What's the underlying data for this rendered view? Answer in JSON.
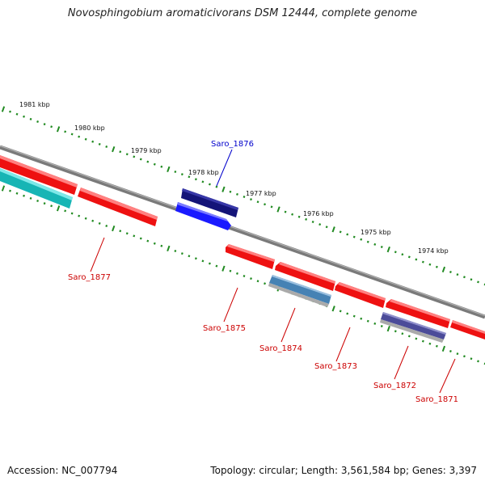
{
  "title": "Novosphingobium aromaticivorans DSM 12444, complete genome",
  "footer": {
    "accession": "Accession: NC_007794",
    "topology": "Topology: circular; Length: 3,561,584 bp; Genes: 3,397"
  },
  "colors": {
    "forward_gene": "#1a1aff",
    "forward_gene_dark": "#12127a",
    "reverse_gene": "#ff1a1a",
    "cyan_feature": "#22cccc",
    "steel_feature": "#4682b4",
    "slate_feature": "#4b4b99",
    "backbone": "#888888",
    "tick": "#228b22",
    "forward_label": "#0000cc",
    "reverse_label": "#cc0000"
  },
  "scale_labels": [
    "1981 kbp",
    "1980 kbp",
    "1979 kbp",
    "1978 kbp",
    "1977 kbp",
    "1976 kbp",
    "1975 kbp",
    "1974 kbp"
  ],
  "genes": [
    {
      "label": "Saro_1876",
      "strand": "forward"
    },
    {
      "label": "Saro_1877",
      "strand": "reverse"
    },
    {
      "label": "Saro_1875",
      "strand": "reverse"
    },
    {
      "label": "Saro_1874",
      "strand": "reverse"
    },
    {
      "label": "Saro_1873",
      "strand": "reverse"
    },
    {
      "label": "Saro_1872",
      "strand": "reverse"
    },
    {
      "label": "Saro_1871",
      "strand": "reverse"
    }
  ]
}
